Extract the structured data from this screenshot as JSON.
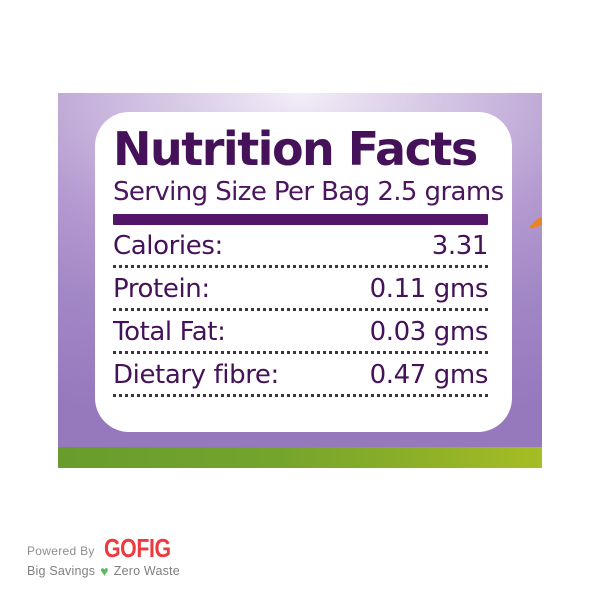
{
  "label": {
    "title": "Nutrition Facts",
    "serving": "Serving Size Per Bag 2.5 grams",
    "rows": [
      {
        "name": "Calories:",
        "value": "3.31"
      },
      {
        "name": "Protein:",
        "value": "0.11 gms"
      },
      {
        "name": "Total Fat:",
        "value": "0.03 gms"
      },
      {
        "name": "Dietary fibre:",
        "value": "0.47 gms"
      }
    ]
  },
  "footer": {
    "powered_by": "Powered By",
    "brand": "GOFIG",
    "tagline_left": "Big Savings",
    "heart_icon": "♥",
    "tagline_right": "Zero Waste"
  },
  "colors": {
    "heading_purple": "#45125a",
    "divider_purple": "#53156a",
    "panel_purple": "#a287c6",
    "strip_green": "#74a42c",
    "brand_red": "#ee3a3f",
    "heart_green": "#5cb75f",
    "accent_orange": "#e8832b",
    "dot_gray": "#3c3540"
  }
}
